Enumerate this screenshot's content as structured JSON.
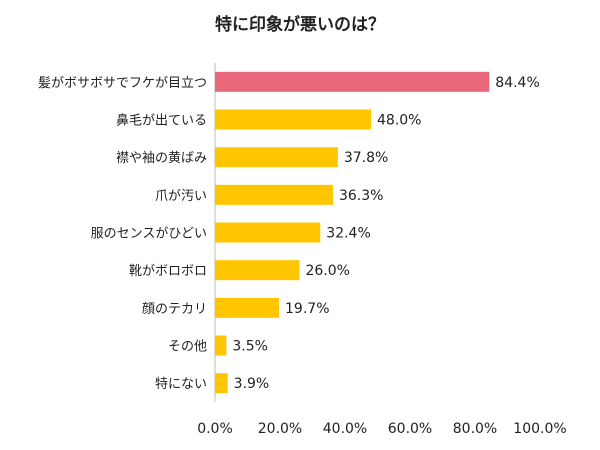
{
  "chart_data": {
    "type": "bar",
    "orientation": "horizontal",
    "title": "特に印象が悪いのは？",
    "categories": [
      "髪がボサボサでフケが目立つ",
      "鼻毛が出ている",
      "襟や袖の黄ばみ",
      "爪が汚い",
      "服のセンスがひどい",
      "靴がボロボロ",
      "顔のテカリ",
      "その他",
      "特にない"
    ],
    "values": [
      84.4,
      48.0,
      37.8,
      36.3,
      32.4,
      26.0,
      19.7,
      3.5,
      3.9
    ],
    "value_labels": [
      "84.4%",
      "48.0%",
      "37.8%",
      "36.3%",
      "32.4%",
      "26.0%",
      "19.7%",
      "3.5%",
      "3.9%"
    ],
    "xlim": [
      0,
      100
    ],
    "xticks": [
      0,
      20,
      40,
      60,
      80,
      100
    ],
    "xtick_labels": [
      "0.0%",
      "20.0%",
      "40.0%",
      "60.0%",
      "80.0%",
      "100.0%"
    ],
    "grid": false,
    "legend": "none",
    "colors": {
      "highlight": "#E8687A",
      "default": "#FFC600"
    },
    "highlight_index": 0
  }
}
